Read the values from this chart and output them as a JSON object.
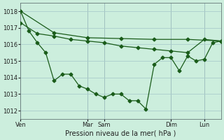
{
  "xlabel": "Pression niveau de la mer( hPa )",
  "bg_color": "#cceedd",
  "grid_color": "#aacccc",
  "line_color": "#1a5c1a",
  "ylim": [
    1011.5,
    1018.5
  ],
  "yticks": [
    1012,
    1013,
    1014,
    1015,
    1016,
    1017,
    1018
  ],
  "xlim": [
    0,
    288
  ],
  "xtick_day_pos": [
    0,
    96,
    120,
    216,
    264
  ],
  "xtick_day_labels": [
    "Ven",
    "Mar",
    "Sam",
    "Dim",
    "Lun"
  ],
  "series1_x": [
    0,
    48,
    96,
    144,
    192,
    240,
    288
  ],
  "series1_y": [
    1018.0,
    1016.7,
    1016.4,
    1016.35,
    1016.3,
    1016.3,
    1016.2
  ],
  "series2_x": [
    0,
    24,
    48,
    72,
    96,
    120,
    144,
    168,
    192,
    216,
    240,
    264,
    288
  ],
  "series2_y": [
    1017.3,
    1016.65,
    1016.5,
    1016.3,
    1016.2,
    1016.1,
    1015.9,
    1015.8,
    1015.7,
    1015.6,
    1015.5,
    1016.3,
    1016.2
  ],
  "series3_x": [
    0,
    12,
    24,
    36,
    48,
    60,
    72,
    84,
    96,
    108,
    120,
    132,
    144,
    156,
    168,
    180,
    192,
    204,
    216,
    228,
    240,
    252,
    264,
    276,
    288
  ],
  "series3_y": [
    1018.0,
    1016.8,
    1016.1,
    1015.5,
    1013.8,
    1014.2,
    1014.2,
    1013.5,
    1013.3,
    1013.0,
    1012.8,
    1013.0,
    1013.0,
    1012.6,
    1012.6,
    1012.1,
    1014.8,
    1015.2,
    1015.2,
    1014.4,
    1015.3,
    1015.0,
    1015.1,
    1016.1,
    1016.2
  ],
  "markersize": 2.5,
  "linewidth": 0.9,
  "tick_fontsize": 6,
  "xlabel_fontsize": 7
}
